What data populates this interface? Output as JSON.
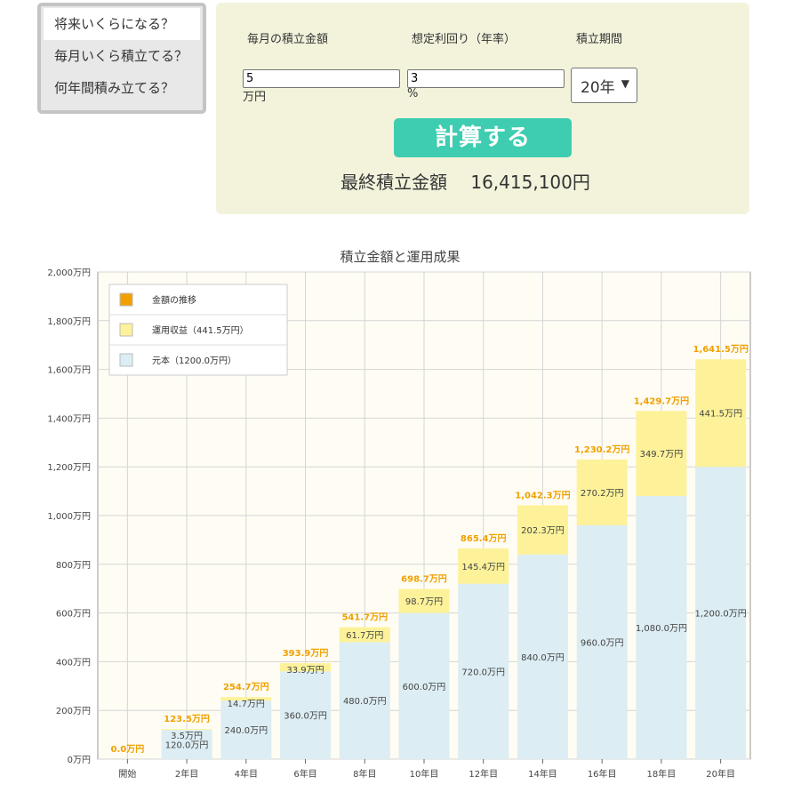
{
  "mode_menu": {
    "items": [
      "将来いくらになる？",
      "毎月いくら積立てる？",
      "何年間積み立てる？"
    ]
  },
  "calculator": {
    "monthly_label": "毎月の積立金額",
    "rate_label": "想定利回り（年率）",
    "period_label": "積立期間",
    "monthly_value": "5",
    "monthly_unit": "万円",
    "rate_value": "3",
    "rate_unit": "%",
    "period_selected": "20年",
    "button_label": "計算する",
    "result_label": "最終積立金額",
    "result_value": "16,415,100円"
  },
  "colors": {
    "accent_button": "#3ecdb0",
    "panel_bg": "#f3f3dc",
    "principal": "#dcedf3",
    "gain": "#fdf29a",
    "total_label": "#f0a000"
  },
  "chart_data": {
    "type": "bar",
    "title": "積立金額と運用成果",
    "ylim": [
      0,
      2000
    ],
    "ytick_values": [
      0,
      200,
      400,
      600,
      800,
      1000,
      1200,
      1400,
      1600,
      1800,
      2000
    ],
    "ytick_labels": [
      "0万円",
      "200万円",
      "400万円",
      "600万円",
      "800万円",
      "1,000万円",
      "1,200万円",
      "1,400万円",
      "1,600万円",
      "1,800万円",
      "2,000万円"
    ],
    "categories": [
      "開始",
      "2年目",
      "4年目",
      "6年目",
      "8年目",
      "10年目",
      "12年目",
      "14年目",
      "16年目",
      "18年目",
      "20年目"
    ],
    "series": [
      {
        "name": "元本（1200.0万円）",
        "values": [
          0,
          120,
          240,
          360,
          480,
          600,
          720,
          840,
          960,
          1080,
          1200
        ],
        "labels": [
          "",
          "120.0万円",
          "240.0万円",
          "360.0万円",
          "480.0万円",
          "600.0万円",
          "720.0万円",
          "840.0万円",
          "960.0万円",
          "1,080.0万円",
          "1,200.0万円"
        ]
      },
      {
        "name": "運用収益（441.5万円）",
        "values": [
          0,
          3.5,
          14.7,
          33.9,
          61.7,
          98.7,
          145.4,
          202.3,
          270.2,
          349.7,
          441.5
        ],
        "labels": [
          "",
          "3.5万円",
          "14.7万円",
          "33.9万円",
          "61.7万円",
          "98.7万円",
          "145.4万円",
          "202.3万円",
          "270.2万円",
          "349.7万円",
          "441.5万円"
        ]
      }
    ],
    "totals": [
      0,
      123.5,
      254.7,
      393.9,
      541.7,
      698.7,
      865.4,
      1042.3,
      1230.2,
      1429.7,
      1641.5
    ],
    "total_labels": [
      "0.0万円",
      "123.5万円",
      "254.7万円",
      "393.9万円",
      "541.7万円",
      "698.7万円",
      "865.4万円",
      "1,042.3万円",
      "1,230.2万円",
      "1,429.7万円",
      "1,641.5万円"
    ],
    "legend": [
      "金額の推移",
      "運用収益（441.5万円）",
      "元本（1200.0万円）"
    ],
    "legend_position": "top-left",
    "grid": true
  }
}
